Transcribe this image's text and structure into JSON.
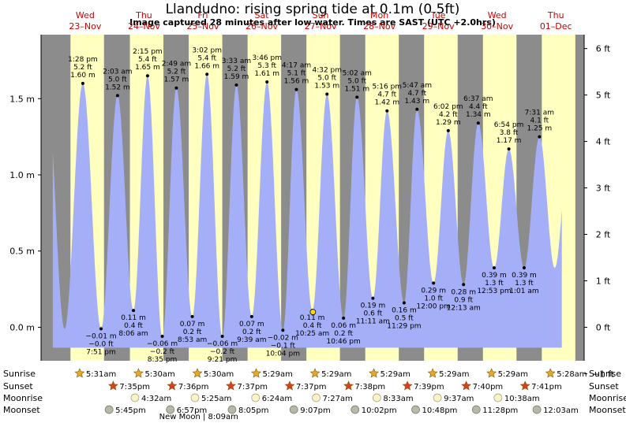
{
  "chart_data": {
    "type": "area",
    "title": "Llandudno: rising  spring tide at 0.1m (0.5ft)",
    "subtitle": "Image captured 28 minutes after low water. Times are SAST (UTC +2.0hrs)",
    "y_left_ticks": [
      {
        "value": 0.0,
        "label": "0.0 m"
      },
      {
        "value": 0.5,
        "label": "0.5 m"
      },
      {
        "value": 1.0,
        "label": "1.0 m"
      },
      {
        "value": 1.5,
        "label": "1.5 m"
      }
    ],
    "y_right_ticks": [
      {
        "value": -1,
        "label": "−1 ft"
      },
      {
        "value": 0,
        "label": "0 ft"
      },
      {
        "value": 1,
        "label": "1 ft"
      },
      {
        "value": 2,
        "label": "2 ft"
      },
      {
        "value": 3,
        "label": "3 ft"
      },
      {
        "value": 4,
        "label": "4 ft"
      },
      {
        "value": 5,
        "label": "5 ft"
      },
      {
        "value": 6,
        "label": "6 ft"
      }
    ],
    "ylim": [
      -0.22,
      1.92
    ],
    "xlim": [
      -0.75,
      8.48
    ],
    "days": [
      {
        "x": 0,
        "dow": "Wed",
        "date": "23–Nov"
      },
      {
        "x": 1,
        "dow": "Thu",
        "date": "24–Nov"
      },
      {
        "x": 2,
        "dow": "Fri",
        "date": "25–Nov"
      },
      {
        "x": 3,
        "dow": "Sat",
        "date": "26–Nov"
      },
      {
        "x": 4,
        "dow": "Sun",
        "date": "27–Nov"
      },
      {
        "x": 5,
        "dow": "Mon",
        "date": "28–Nov"
      },
      {
        "x": 6,
        "dow": "Tue",
        "date": "29–Nov"
      },
      {
        "x": 7,
        "dow": "Wed",
        "date": "30–Nov"
      },
      {
        "x": 8,
        "dow": "Thu",
        "date": "01–Dec"
      }
    ],
    "daylight": [
      {
        "start": -0.25,
        "end": 0.32
      },
      {
        "start": 0.76,
        "end": 1.33
      },
      {
        "start": 1.76,
        "end": 2.33
      },
      {
        "start": 2.76,
        "end": 3.33
      },
      {
        "start": 3.76,
        "end": 4.33
      },
      {
        "start": 4.76,
        "end": 5.33
      },
      {
        "start": 5.76,
        "end": 6.33
      },
      {
        "start": 6.76,
        "end": 7.33
      },
      {
        "start": 7.76,
        "end": 8.33
      }
    ],
    "plot_range": [
      -0.55,
      8.1
    ],
    "extremes": [
      {
        "t": -0.04,
        "h": 1.6,
        "type": "high",
        "time": "1:28 pm",
        "ft": "5.2 ft",
        "m": "1.60 m"
      },
      {
        "t": 0.27,
        "h": -0.01,
        "type": "low",
        "time": "7:51 pm",
        "ft": "−0.0 ft",
        "m": "−0.01 m"
      },
      {
        "t": 0.55,
        "h": 1.52,
        "type": "high",
        "time": "2:03 am",
        "ft": "5.0 ft",
        "m": "1.52 m"
      },
      {
        "t": 0.82,
        "h": 0.11,
        "type": "low",
        "time": "8:06 am",
        "ft": "0.4 ft",
        "m": "0.11 m"
      },
      {
        "t": 1.06,
        "h": 1.65,
        "type": "high",
        "time": "2:15 pm",
        "ft": "5.4 ft",
        "m": "1.65 m"
      },
      {
        "t": 1.31,
        "h": -0.06,
        "type": "low",
        "time": "8:35 pm",
        "ft": "−0.2 ft",
        "m": "−0.06 m"
      },
      {
        "t": 1.55,
        "h": 1.57,
        "type": "high",
        "time": "2:49 am",
        "ft": "5.2 ft",
        "m": "1.57 m"
      },
      {
        "t": 1.82,
        "h": 0.07,
        "type": "low",
        "time": "8:53 am",
        "ft": "0.2 ft",
        "m": "0.07 m"
      },
      {
        "t": 2.07,
        "h": 1.66,
        "type": "high",
        "time": "3:02 pm",
        "ft": "5.4 ft",
        "m": "1.66 m"
      },
      {
        "t": 2.33,
        "h": -0.06,
        "type": "low",
        "time": "9:21 pm",
        "ft": "−0.2 ft",
        "m": "−0.06 m"
      },
      {
        "t": 2.57,
        "h": 1.59,
        "type": "high",
        "time": "3:33 am",
        "ft": "5.2 ft",
        "m": "1.59 m"
      },
      {
        "t": 2.83,
        "h": 0.07,
        "type": "low",
        "time": "9:39 am",
        "ft": "0.2 ft",
        "m": "0.07 m"
      },
      {
        "t": 3.09,
        "h": 1.61,
        "type": "high",
        "time": "3:46 pm",
        "ft": "5.3 ft",
        "m": "1.61 m"
      },
      {
        "t": 3.36,
        "h": -0.02,
        "type": "low",
        "time": "10:04 pm",
        "ft": "−0.1 ft",
        "m": "−0.02 m"
      },
      {
        "t": 3.59,
        "h": 1.56,
        "type": "high",
        "time": "4:17 am",
        "ft": "5.1 ft",
        "m": "1.56 m"
      },
      {
        "t": 3.86,
        "h": 0.11,
        "type": "low",
        "time": "10:25 am",
        "ft": "0.4 ft",
        "m": "0.11 m"
      },
      {
        "t": 4.11,
        "h": 1.53,
        "type": "high",
        "time": "4:32 pm",
        "ft": "5.0 ft",
        "m": "1.53 m"
      },
      {
        "t": 4.39,
        "h": 0.06,
        "type": "low",
        "time": "10:46 pm",
        "ft": "0.2 ft",
        "m": "0.06 m"
      },
      {
        "t": 4.62,
        "h": 1.51,
        "type": "high",
        "time": "5:02 am",
        "ft": "5.0 ft",
        "m": "1.51 m"
      },
      {
        "t": 4.89,
        "h": 0.19,
        "type": "low",
        "time": "11:11 am",
        "ft": "0.6 ft",
        "m": "0.19 m"
      },
      {
        "t": 5.13,
        "h": 1.42,
        "type": "high",
        "time": "5:16 pm",
        "ft": "4.7 ft",
        "m": "1.42 m"
      },
      {
        "t": 5.42,
        "h": 0.16,
        "type": "low",
        "time": "11:29 pm",
        "ft": "0.5 ft",
        "m": "0.16 m"
      },
      {
        "t": 5.64,
        "h": 1.43,
        "type": "high",
        "time": "5:47 am",
        "ft": "4.7 ft",
        "m": "1.43 m"
      },
      {
        "t": 5.92,
        "h": 0.29,
        "type": "low",
        "time": "12:00 pm",
        "ft": "1.0 ft",
        "m": "0.29 m"
      },
      {
        "t": 6.17,
        "h": 1.29,
        "type": "high",
        "time": "6:02 pm",
        "ft": "4.2 ft",
        "m": "1.29 m"
      },
      {
        "t": 6.43,
        "h": 0.28,
        "type": "low",
        "time": "12:13 am",
        "ft": "0.9 ft",
        "m": "0.28 m"
      },
      {
        "t": 6.68,
        "h": 1.34,
        "type": "high",
        "time": "6:37 am",
        "ft": "4.4 ft",
        "m": "1.34 m"
      },
      {
        "t": 6.95,
        "h": 0.39,
        "type": "low",
        "time": "12:53 pm",
        "ft": "1.3 ft",
        "m": "0.39 m"
      },
      {
        "t": 7.2,
        "h": 1.17,
        "type": "high",
        "time": "6:54 pm",
        "ft": "3.8 ft",
        "m": "1.17 m"
      },
      {
        "t": 7.46,
        "h": 0.39,
        "type": "low",
        "time": "1:01 am",
        "ft": "1.3 ft",
        "m": "0.39 m"
      },
      {
        "t": 7.72,
        "h": 1.25,
        "type": "high",
        "time": "7:31 am",
        "ft": "4.1 ft",
        "m": "1.25 m"
      }
    ],
    "current_marker": {
      "t": 3.87,
      "h": 0.1
    }
  },
  "events": {
    "labels": {
      "sunrise": "Sunrise",
      "sunset": "Sunset",
      "moonrise": "Moonrise",
      "moonset": "Moonset"
    },
    "sunrise": [
      {
        "x": 0.0,
        "time": "5:31am"
      },
      {
        "x": 1.0,
        "time": "5:30am"
      },
      {
        "x": 2.0,
        "time": "5:30am"
      },
      {
        "x": 3.0,
        "time": "5:29am"
      },
      {
        "x": 4.0,
        "time": "5:29am"
      },
      {
        "x": 5.0,
        "time": "5:29am"
      },
      {
        "x": 6.0,
        "time": "5:29am"
      },
      {
        "x": 7.0,
        "time": "5:29am"
      },
      {
        "x": 8.0,
        "time": "5:28am"
      }
    ],
    "sunset": [
      {
        "x": 0.57,
        "time": "7:35pm"
      },
      {
        "x": 1.57,
        "time": "7:36pm"
      },
      {
        "x": 2.57,
        "time": "7:37pm"
      },
      {
        "x": 3.57,
        "time": "7:37pm"
      },
      {
        "x": 4.57,
        "time": "7:38pm"
      },
      {
        "x": 5.57,
        "time": "7:39pm"
      },
      {
        "x": 6.57,
        "time": "7:40pm"
      },
      {
        "x": 7.57,
        "time": "7:41pm"
      }
    ],
    "moonrise": [
      {
        "x": 0.94,
        "time": "4:32am"
      },
      {
        "x": 1.96,
        "time": "5:25am"
      },
      {
        "x": 2.99,
        "time": "6:24am"
      },
      {
        "x": 4.02,
        "time": "7:27am"
      },
      {
        "x": 5.05,
        "time": "8:33am"
      },
      {
        "x": 6.08,
        "time": "9:37am"
      },
      {
        "x": 7.11,
        "time": "10:38am"
      }
    ],
    "moonset": [
      {
        "x": 0.5,
        "time": "5:45pm"
      },
      {
        "x": 1.54,
        "time": "6:57pm"
      },
      {
        "x": 2.59,
        "time": "8:05pm"
      },
      {
        "x": 3.64,
        "time": "9:07pm"
      },
      {
        "x": 4.68,
        "time": "10:02pm"
      },
      {
        "x": 5.71,
        "time": "10:48pm"
      },
      {
        "x": 6.74,
        "time": "11:28pm"
      },
      {
        "x": 7.77,
        "time": "12:03am"
      }
    ],
    "new_moon": {
      "x": 1.93,
      "label": "New Moon | 8:09am"
    }
  },
  "colors": {
    "night": "#8c8c8c",
    "day": "#ffffc0",
    "water": "#a4aff8",
    "day_label": "#cc0000",
    "sun": "#e8a828",
    "sunset_star": "#d84020",
    "moonrise": "#f8f4c8",
    "moonset": "#b8b8a8"
  }
}
